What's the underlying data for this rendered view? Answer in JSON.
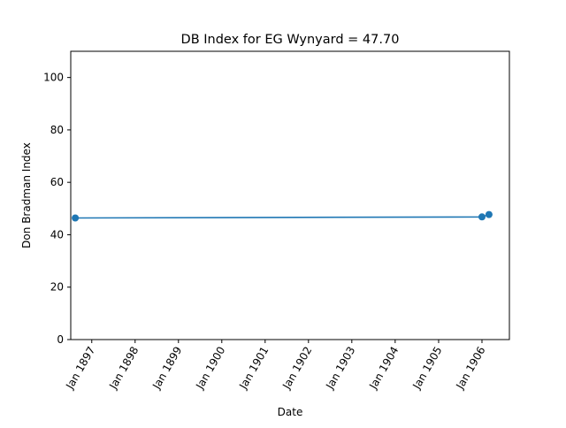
{
  "chart_data": {
    "type": "line",
    "title": "DB Index for EG Wynyard = 47.70",
    "xlabel": "Date",
    "ylabel": "Don Bradman Index",
    "x_ticks": [
      "1897-01-01",
      "1898-01-01",
      "1899-01-01",
      "1900-01-01",
      "1901-01-01",
      "1902-01-01",
      "1903-01-01",
      "1904-01-01",
      "1905-01-01",
      "1906-01-01"
    ],
    "x_tick_labels": [
      "Jan 1897",
      "Jan 1898",
      "Jan 1899",
      "Jan 1900",
      "Jan 1901",
      "Jan 1902",
      "Jan 1903",
      "Jan 1904",
      "Jan 1905",
      "Jan 1906"
    ],
    "xlim": [
      "1896-07-08",
      "1906-08-20"
    ],
    "y_ticks": [
      0,
      20,
      40,
      60,
      80,
      100
    ],
    "ylim": [
      0,
      110
    ],
    "grid": false,
    "series": [
      {
        "color": "#1f77b4",
        "marker": "circle",
        "points": [
          {
            "x": "1896-08-15",
            "y": 46.4
          },
          {
            "x": "1906-01-01",
            "y": 46.8
          },
          {
            "x": "1906-03-01",
            "y": 47.7
          }
        ]
      }
    ]
  }
}
